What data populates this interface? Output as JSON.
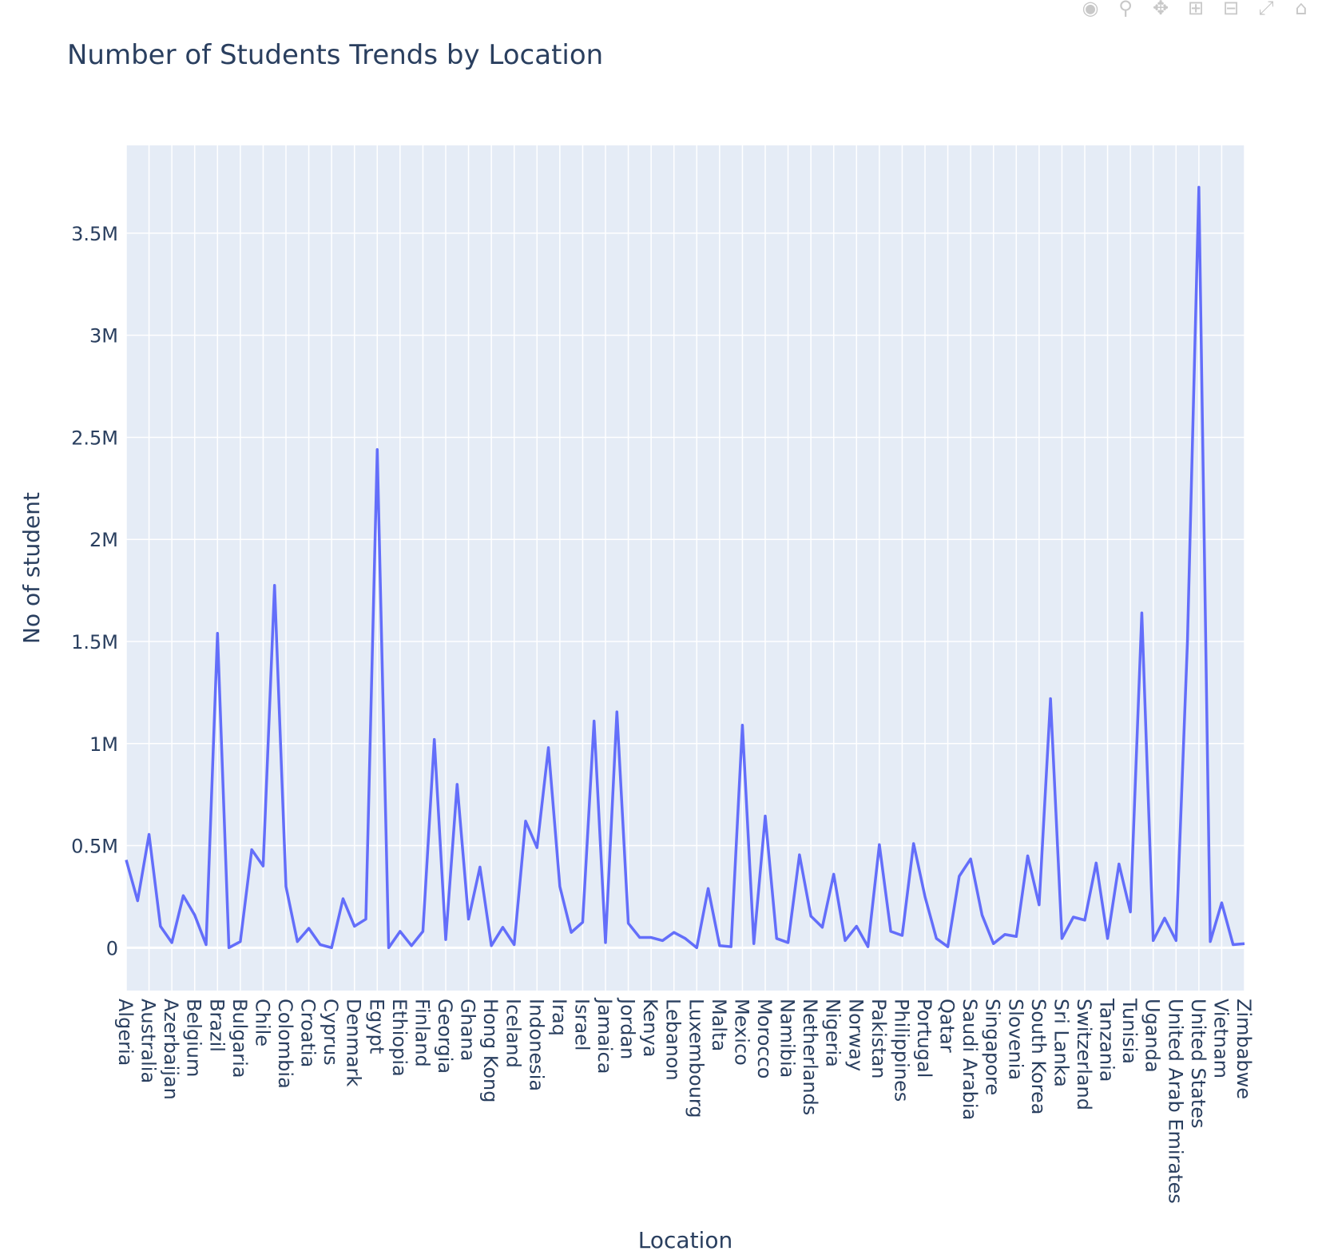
{
  "toolbar": {
    "icons": [
      "camera-icon",
      "zoom-icon",
      "pan-icon",
      "zoom-in-icon",
      "zoom-out-icon",
      "autoscale-icon",
      "home-icon"
    ]
  },
  "colors": {
    "plot_bg": "#e5ecf6",
    "grid": "#ffffff",
    "line": "#636efa",
    "text": "#2a3f5f"
  },
  "chart_data": {
    "type": "line",
    "title": "Number of Students Trends by Location",
    "xlabel": "Location",
    "ylabel": "No of student",
    "ylim": [
      -210000,
      3930000
    ],
    "y_ticks": [
      0,
      500000,
      1000000,
      1500000,
      2000000,
      2500000,
      3000000,
      3500000
    ],
    "y_tick_labels": [
      "0",
      "0.5M",
      "1M",
      "1.5M",
      "2M",
      "2.5M",
      "3M",
      "3.5M"
    ],
    "grid": true,
    "legend": "none",
    "x_tick_labels": [
      "Algeria",
      "Australia",
      "Azerbaijan",
      "Belgium",
      "Brazil",
      "Bulgaria",
      "Chile",
      "Colombia",
      "Croatia",
      "Cyprus",
      "Denmark",
      "Egypt",
      "Ethiopia",
      "Finland",
      "Georgia",
      "Ghana",
      "Hong Kong",
      "Iceland",
      "Indonesia",
      "Iraq",
      "Israel",
      "Jamaica",
      "Jordan",
      "Kenya",
      "Lebanon",
      "Luxembourg",
      "Malta",
      "Mexico",
      "Morocco",
      "Namibia",
      "Netherlands",
      "Nigeria",
      "Norway",
      "Pakistan",
      "Philippines",
      "Portugal",
      "Qatar",
      "Saudi Arabia",
      "Singapore",
      "Slovenia",
      "South Korea",
      "Sri Lanka",
      "Switzerland",
      "Tanzania",
      "Tunisia",
      "Uganda",
      "United Arab Emirates",
      "United States",
      "Vietnam",
      "Zimbabwe"
    ],
    "values": [
      430000,
      230000,
      555000,
      105000,
      25000,
      255000,
      160000,
      15000,
      1540000,
      0,
      30000,
      480000,
      400000,
      1775000,
      300000,
      30000,
      95000,
      15000,
      0,
      240000,
      105000,
      140000,
      2440000,
      0,
      80000,
      10000,
      80000,
      1020000,
      40000,
      800000,
      140000,
      395000,
      10000,
      100000,
      15000,
      620000,
      490000,
      980000,
      300000,
      75000,
      125000,
      1110000,
      25000,
      1155000,
      120000,
      50000,
      50000,
      35000,
      75000,
      45000,
      0,
      290000,
      10000,
      5000,
      1090000,
      20000,
      645000,
      45000,
      25000,
      455000,
      155000,
      100000,
      360000,
      35000,
      105000,
      5000,
      505000,
      80000,
      60000,
      510000,
      250000,
      45000,
      5000,
      350000,
      435000,
      160000,
      20000,
      65000,
      55000,
      450000,
      210000,
      1220000,
      45000,
      150000,
      135000,
      415000,
      45000,
      410000,
      175000,
      1640000,
      35000,
      145000,
      35000,
      1500000,
      3725000,
      30000,
      220000,
      15000,
      20000
    ]
  }
}
